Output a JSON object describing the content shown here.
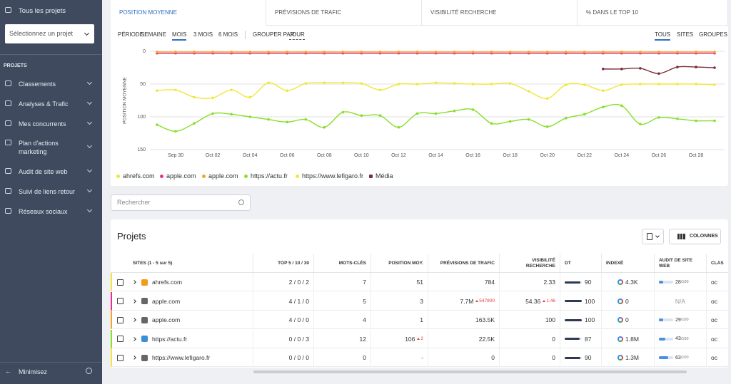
{
  "sidebar": {
    "all_projects": "Tous les projets",
    "select": "Sélectionnez un projet",
    "section": "PROJETS",
    "menu": [
      "Classements",
      "Analyses & Trafic",
      "Mes concurrents",
      "Plan d'actions marketing",
      "Audit de site web",
      "Suivi de liens retour",
      "Réseaux sociaux"
    ],
    "minimize": "Minimisez"
  },
  "tabs": [
    "POSITION MOYENNE",
    "PRÉVISIONS DE TRAFIC",
    "VISIBILITÉ RECHERCHE",
    "% DANS LE TOP 10"
  ],
  "filters": {
    "period_label": "PÉRIODE:",
    "periods": [
      "SEMAINE",
      "MOIS",
      "3 MOIS",
      "6 MOIS"
    ],
    "group_label": "GROUPER PAR:",
    "group_value": "JOUR",
    "views": [
      "TOUS",
      "SITES",
      "GROUPES"
    ]
  },
  "chart_data": {
    "type": "line",
    "y_label": "POSITION MOYENNE",
    "ylim": [
      0,
      150
    ],
    "y_reversed": true,
    "yticks": [
      0,
      50,
      100,
      150
    ],
    "grid": true,
    "categories": [
      null,
      "Sep 30",
      null,
      "Oct 02",
      null,
      "Oct 04",
      null,
      "Oct 06",
      null,
      "Oct 08",
      null,
      "Oct 10",
      null,
      "Oct 12",
      null,
      "Oct 14",
      null,
      "Oct 16",
      null,
      "Oct 18",
      null,
      "Oct 20",
      null,
      "Oct 22",
      null,
      "Oct 24",
      null,
      "Oct 26",
      null,
      "Oct 28",
      null
    ],
    "series": [
      {
        "name": "ahrefs.com",
        "color": "#f2e63a",
        "values": [
          60,
          59,
          70,
          71,
          59,
          70,
          48,
          60,
          49,
          48,
          48,
          49,
          59,
          50,
          50,
          48,
          49,
          50,
          50,
          49,
          61,
          72,
          51,
          51,
          60,
          51,
          50,
          50,
          50,
          50,
          51
        ]
      },
      {
        "name": "apple.com",
        "color": "#e8318f",
        "values": [
          3,
          3,
          3,
          3,
          3,
          3,
          3,
          3,
          3,
          3,
          3,
          3,
          3,
          3,
          3,
          3,
          3,
          3,
          3,
          3,
          3,
          3,
          3,
          3,
          3,
          3,
          3,
          3,
          3,
          3,
          3
        ]
      },
      {
        "name": "apple.com",
        "color": "#f5a623",
        "values": [
          1,
          1,
          1,
          1,
          1,
          1,
          1,
          1,
          1,
          1,
          1,
          1,
          1,
          1,
          1,
          1,
          1,
          1,
          1,
          1,
          1,
          1,
          1,
          1,
          1,
          1,
          1,
          1,
          1,
          1,
          1
        ]
      },
      {
        "name": "https://actu.fr",
        "color": "#86e02c",
        "values": [
          112,
          122,
          110,
          95,
          96,
          100,
          104,
          108,
          104,
          116,
          93,
          98,
          98,
          116,
          95,
          95,
          91,
          89,
          110,
          107,
          104,
          115,
          102,
          96,
          85,
          83,
          111,
          101,
          103,
          106,
          106
        ]
      },
      {
        "name": "https://www.lefigaro.fr",
        "color": "#f7e43f",
        "values": [
          null,
          null,
          null,
          null,
          null,
          null,
          null,
          null,
          null,
          null,
          null,
          null,
          null,
          null,
          null,
          null,
          null,
          null,
          null,
          null,
          null,
          null,
          null,
          null,
          null,
          null,
          null,
          null,
          null,
          null,
          null
        ]
      },
      {
        "name": "Média",
        "color": "#7b2d3a",
        "legend_shape": "square",
        "values": [
          null,
          null,
          null,
          null,
          null,
          null,
          null,
          null,
          null,
          null,
          null,
          null,
          null,
          null,
          null,
          null,
          null,
          null,
          null,
          null,
          null,
          null,
          null,
          null,
          27,
          27,
          26,
          34,
          24,
          24,
          25
        ]
      }
    ]
  },
  "search_placeholder": "Rechercher",
  "table": {
    "title": "Projets",
    "columns_button": "COLONNES",
    "headers": [
      "SITES (1 - 5 sur 5)",
      "TOP 5 / 10 / 30",
      "MOTS-CLÉS",
      "POSITION MOY.",
      "PRÉVISIONS DE TRAFIC",
      "VISIBILITÉ RECHERCHE",
      "DT",
      "INDEXÉ",
      "AUDIT DE SITE WEB",
      "CLAS"
    ],
    "rows": [
      {
        "color": "#f2e63a",
        "site": "ahrefs.com",
        "top": "2 / 0 / 2",
        "keywords": "7",
        "position": "51",
        "traffic": "784",
        "visibility": "2.33",
        "dt": 90,
        "indexed": "4.3K",
        "audit": "28",
        "audit_max": "/100",
        "cls": "oc"
      },
      {
        "color": "#e8318f",
        "site": "apple.com",
        "top": "4 / 1 / 0",
        "keywords": "5",
        "position": "3",
        "traffic": "7.7M",
        "traffic_delta": "547800",
        "visibility": "54.36",
        "visibility_delta": "1.46",
        "dt": 100,
        "indexed": "0",
        "audit": "N/A",
        "cls": "oc"
      },
      {
        "color": "#f5a623",
        "site": "apple.com",
        "top": "4 / 0 / 0",
        "keywords": "4",
        "position": "1",
        "traffic": "163.5K",
        "visibility": "100",
        "dt": 100,
        "indexed": "0",
        "audit": "29",
        "audit_max": "/100",
        "cls": "oc"
      },
      {
        "color": "#86e02c",
        "site": "https://actu.fr",
        "top": "0 / 0 / 3",
        "keywords": "12",
        "position": "106",
        "position_delta": "2",
        "traffic": "22.5K",
        "visibility": "0",
        "dt": 87,
        "indexed": "1.8M",
        "audit": "43",
        "audit_max": "/100",
        "cls": "oc"
      },
      {
        "color": "#f7e43f",
        "site": "https://www.lefigaro.fr",
        "top": "0 / 0 / 0",
        "keywords": "0",
        "position": "-",
        "traffic": "0",
        "visibility": "0",
        "dt": 90,
        "indexed": "1.3M",
        "audit": "63",
        "audit_max": "/100",
        "cls": "oc"
      }
    ]
  }
}
